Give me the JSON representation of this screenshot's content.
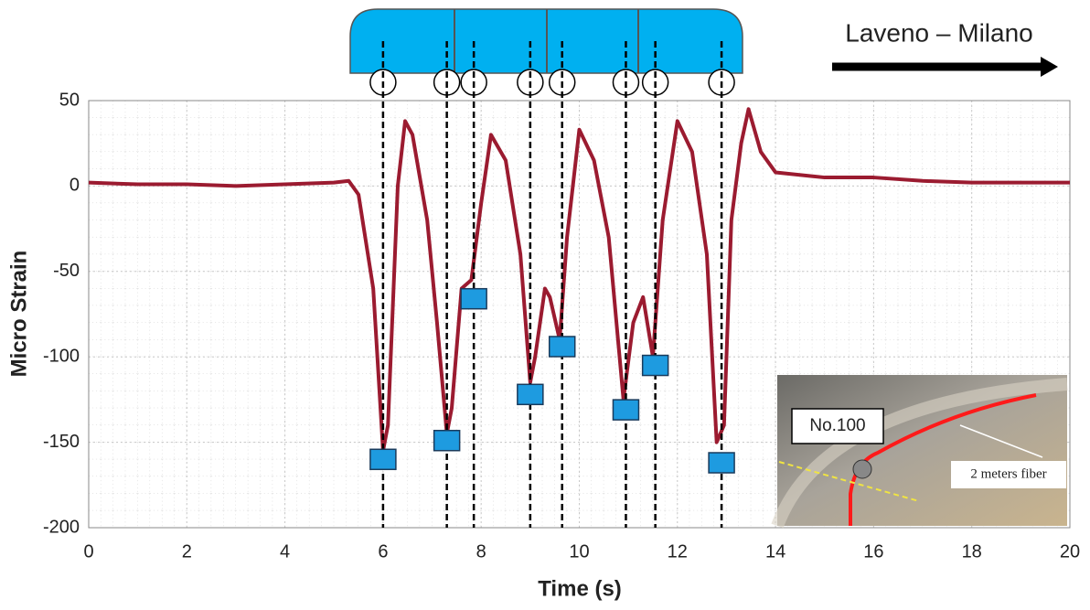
{
  "chart_data": {
    "type": "line",
    "xlabel": "Time (s)",
    "ylabel": "Micro Strain",
    "annotation": "Laveno – Milano",
    "xlim": [
      0,
      20
    ],
    "xticks": [
      0,
      2,
      4,
      6,
      8,
      10,
      12,
      14,
      16,
      18,
      20
    ],
    "ylim": [
      -200,
      50
    ],
    "yticks": [
      -200,
      -150,
      -100,
      -50,
      0,
      50
    ],
    "grid": true,
    "series": [
      {
        "color": "#9b1b30",
        "x": [
          0,
          1,
          2,
          3,
          4,
          5,
          5.3,
          5.5,
          5.8,
          6.0,
          6.1,
          6.3,
          6.45,
          6.6,
          6.9,
          7.1,
          7.3,
          7.4,
          7.6,
          7.8,
          8.0,
          8.2,
          8.5,
          8.8,
          9.0,
          9.1,
          9.3,
          9.4,
          9.6,
          9.75,
          10.0,
          10.3,
          10.6,
          10.9,
          11.1,
          11.3,
          11.5,
          11.7,
          12.0,
          12.3,
          12.6,
          12.8,
          12.95,
          13.1,
          13.3,
          13.45,
          13.7,
          14.0,
          15,
          16,
          17,
          18,
          19,
          20
        ],
        "values": [
          2,
          1,
          1,
          0,
          1,
          2,
          3,
          -5,
          -60,
          -155,
          -140,
          0,
          38,
          30,
          -20,
          -80,
          -145,
          -130,
          -60,
          -55,
          -10,
          30,
          15,
          -40,
          -115,
          -100,
          -60,
          -65,
          -90,
          -30,
          33,
          15,
          -30,
          -125,
          -80,
          -65,
          -100,
          -20,
          38,
          20,
          -40,
          -150,
          -140,
          -20,
          25,
          45,
          20,
          8,
          5,
          5,
          3,
          2,
          2,
          2
        ]
      },
      {
        "color": "#1e9be0",
        "x": [
          6.0,
          7.3,
          7.85,
          9.0,
          9.65,
          10.95,
          11.55,
          12.9
        ],
        "values": [
          -160,
          -149,
          -66,
          -122,
          -94,
          -131,
          -105,
          -162
        ]
      }
    ],
    "inset": {
      "labels": [
        "No.100",
        "2 meters fiber"
      ]
    }
  }
}
